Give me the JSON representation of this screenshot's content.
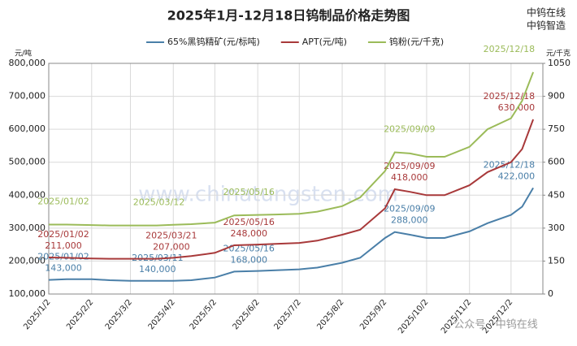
{
  "chart_data": {
    "type": "line",
    "title": "2025年1月-12月18日钨制品价格走势图",
    "watermarks": [
      "中钨在线",
      "中钨智造",
      "www.chinatungsten.com",
      "公众号 · 中钨在线"
    ],
    "y_axis_label": "元/吨",
    "y2_axis_label": "元/千克",
    "x": [
      "2025/1/2",
      "2025/1/15",
      "2025/2/2",
      "2025/2/15",
      "2025/3/2",
      "2025/3/11",
      "2025/3/12",
      "2025/3/21",
      "2025/4/2",
      "2025/4/15",
      "2025/5/2",
      "2025/5/16",
      "2025/6/2",
      "2025/6/15",
      "2025/7/2",
      "2025/7/15",
      "2025/8/2",
      "2025/8/15",
      "2025/9/2",
      "2025/9/9",
      "2025/9/20",
      "2025/10/2",
      "2025/10/15",
      "2025/11/2",
      "2025/11/15",
      "2025/12/2",
      "2025/12/10",
      "2025/12/18"
    ],
    "xlim": [
      "2025/1/2",
      "2025/12/25"
    ],
    "xticks": [
      "2025/1/2",
      "2025/2/2",
      "2025/3/2",
      "2025/4/2",
      "2025/5/2",
      "2025/6/2",
      "2025/7/2",
      "2025/8/2",
      "2025/9/2",
      "2025/10/2",
      "2025/11/2",
      "2025/12/2"
    ],
    "ylim": [
      100000,
      800000
    ],
    "yticks": [
      {
        "value": 100000,
        "label": "100,000"
      },
      {
        "value": 200000,
        "label": "200,000"
      },
      {
        "value": 300000,
        "label": "300,000"
      },
      {
        "value": 400000,
        "label": "400,000"
      },
      {
        "value": 500000,
        "label": "500,000"
      },
      {
        "value": 600000,
        "label": "600,000"
      },
      {
        "value": 700000,
        "label": "700,000"
      },
      {
        "value": 800000,
        "label": "800,000"
      }
    ],
    "y2lim": [
      0,
      1050
    ],
    "y2ticks": [
      0,
      150,
      300,
      450,
      600,
      750,
      900,
      1050
    ],
    "grid": true,
    "series": [
      {
        "name": "65%黑钨精矿(元/标吨)",
        "color": "#4a7fa8",
        "values": [
          143000,
          145000,
          145000,
          142000,
          140000,
          140000,
          140000,
          140000,
          140000,
          142000,
          150000,
          168000,
          170000,
          172000,
          175000,
          180000,
          195000,
          210000,
          270000,
          288000,
          280000,
          270000,
          270000,
          290000,
          315000,
          340000,
          365000,
          422000
        ],
        "value_labels": [
          "143,000",
          null,
          null,
          null,
          null,
          "140,000",
          null,
          null,
          null,
          null,
          null,
          "168,000",
          null,
          null,
          null,
          null,
          null,
          null,
          null,
          "288,000",
          null,
          null,
          null,
          null,
          null,
          null,
          null,
          "422,000"
        ],
        "date_labels": [
          "2025/01/02",
          null,
          null,
          null,
          null,
          "2025/03/11",
          null,
          null,
          null,
          null,
          null,
          "2025/05/16",
          null,
          null,
          null,
          null,
          null,
          null,
          null,
          "2025/09/09",
          null,
          null,
          null,
          null,
          null,
          null,
          null,
          "2025/12/18"
        ]
      },
      {
        "name": "APT(元/吨)",
        "color": "#a8393a",
        "values": [
          211000,
          210000,
          208000,
          207000,
          207000,
          207000,
          207000,
          207000,
          210000,
          215000,
          225000,
          248000,
          250000,
          252000,
          255000,
          262000,
          280000,
          295000,
          360000,
          418000,
          410000,
          400000,
          400000,
          430000,
          470000,
          500000,
          540000,
          630000
        ],
        "value_labels": [
          "211,000",
          null,
          null,
          null,
          null,
          null,
          null,
          "207,000",
          null,
          null,
          null,
          "248,000",
          null,
          null,
          null,
          null,
          null,
          null,
          null,
          "418,000",
          null,
          null,
          null,
          null,
          null,
          null,
          null,
          "630,000"
        ],
        "date_labels": [
          "2025/01/02",
          null,
          null,
          null,
          null,
          null,
          null,
          "2025/03/21",
          null,
          null,
          null,
          "2025/05/16",
          null,
          null,
          null,
          null,
          null,
          null,
          null,
          "2025/09/09",
          null,
          null,
          null,
          null,
          null,
          null,
          null,
          "2025/12/18"
        ]
      },
      {
        "name": "钨粉(元/千克)",
        "color": "#9bbb59",
        "axis": "y2",
        "values": [
          316,
          316,
          314,
          312,
          312,
          312,
          312,
          312,
          315,
          318,
          325,
          358,
          360,
          362,
          365,
          375,
          400,
          440,
          560,
          645,
          640,
          625,
          625,
          670,
          750,
          800,
          880,
          1010
        ],
        "value_labels": [
          null,
          null,
          null,
          null,
          null,
          null,
          null,
          null,
          null,
          null,
          null,
          null,
          null,
          null,
          null,
          null,
          null,
          null,
          null,
          null,
          null,
          null,
          null,
          null,
          null,
          null,
          null,
          null
        ],
        "date_labels": [
          "2025/01/02",
          null,
          null,
          null,
          null,
          null,
          "2025/03/12",
          null,
          null,
          null,
          null,
          "2025/05/16",
          null,
          null,
          null,
          null,
          null,
          null,
          null,
          "2025/09/09",
          null,
          null,
          null,
          null,
          null,
          null,
          null,
          "2025/12/18"
        ]
      }
    ]
  }
}
